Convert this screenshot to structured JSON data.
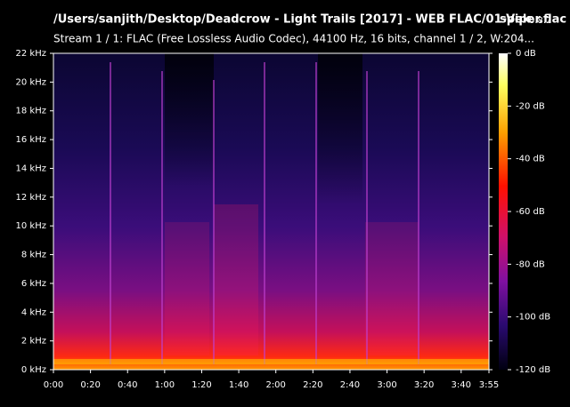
{
  "chart_data": {
    "type": "spectrogram",
    "title": "/Users/sanjith/Desktop/Deadcrow - Light Trails [2017] - WEB FLAC/01-Viper.flac",
    "app_name": "spek",
    "app_version": "0.8.2",
    "subtitle": "Stream 1 / 1: FLAC (Free Lossless Audio Codec), 44100 Hz, 16 bits, channel 1 / 2, W:204...",
    "xlim": [
      0,
      235
    ],
    "xticks": [
      {
        "value": 0,
        "label": "0:00"
      },
      {
        "value": 20,
        "label": "0:20"
      },
      {
        "value": 40,
        "label": "0:40"
      },
      {
        "value": 60,
        "label": "1:00"
      },
      {
        "value": 80,
        "label": "1:20"
      },
      {
        "value": 100,
        "label": "1:40"
      },
      {
        "value": 120,
        "label": "2:00"
      },
      {
        "value": 140,
        "label": "2:20"
      },
      {
        "value": 160,
        "label": "2:40"
      },
      {
        "value": 180,
        "label": "3:00"
      },
      {
        "value": 200,
        "label": "3:20"
      },
      {
        "value": 220,
        "label": "3:40"
      },
      {
        "value": 235,
        "label": "3:55"
      }
    ],
    "ylim": [
      0,
      22
    ],
    "yticks": [
      {
        "value": 0,
        "label": "0 kHz"
      },
      {
        "value": 2,
        "label": "2 kHz"
      },
      {
        "value": 4,
        "label": "4 kHz"
      },
      {
        "value": 6,
        "label": "6 kHz"
      },
      {
        "value": 8,
        "label": "8 kHz"
      },
      {
        "value": 10,
        "label": "10 kHz"
      },
      {
        "value": 12,
        "label": "12 kHz"
      },
      {
        "value": 14,
        "label": "14 kHz"
      },
      {
        "value": 16,
        "label": "16 kHz"
      },
      {
        "value": 18,
        "label": "18 kHz"
      },
      {
        "value": 20,
        "label": "20 kHz"
      },
      {
        "value": 22,
        "label": "22 kHz"
      }
    ],
    "zlim": [
      -120,
      0
    ],
    "zticks": [
      {
        "value": 0,
        "label": "0 dB"
      },
      {
        "value": -20,
        "label": "-20 dB"
      },
      {
        "value": -40,
        "label": "-40 dB"
      },
      {
        "value": -60,
        "label": "-60 dB"
      },
      {
        "value": -80,
        "label": "-80 dB"
      },
      {
        "value": -100,
        "label": "-100 dB"
      },
      {
        "value": -120,
        "label": "-120 dB"
      }
    ]
  }
}
